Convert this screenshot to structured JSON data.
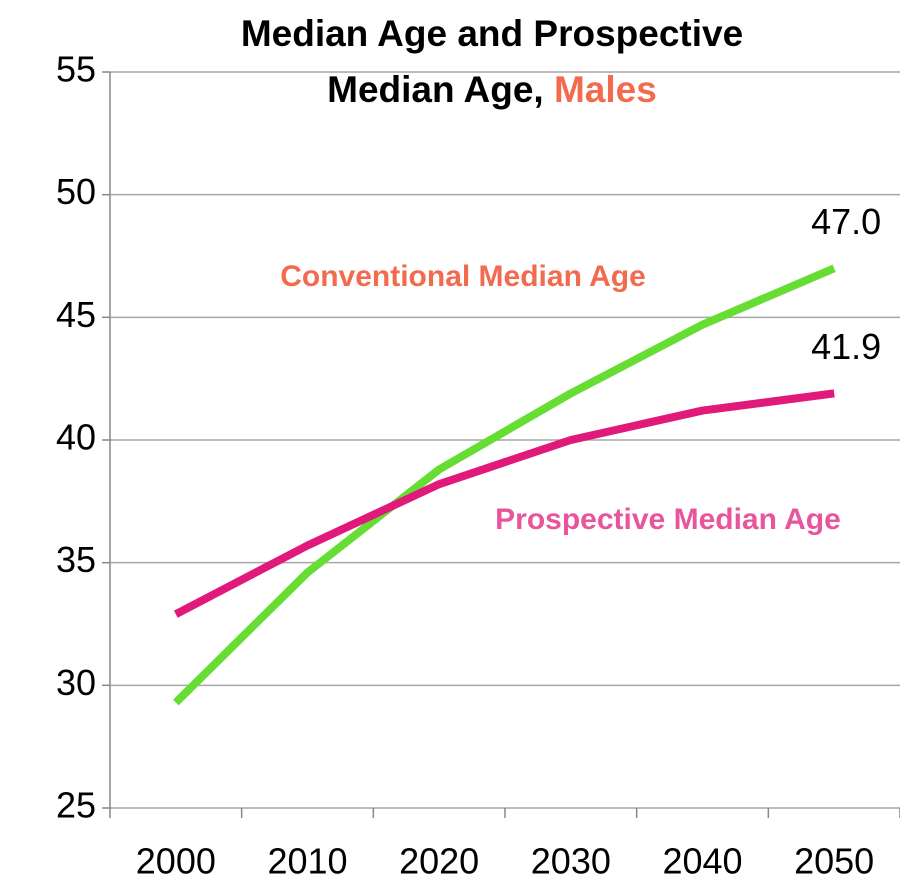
{
  "chart_data": {
    "type": "line",
    "title": [
      "Median Age and Prospective",
      "Median Age,",
      "Males"
    ],
    "title_highlight_color": "#f26b4f",
    "categories": [
      "2000",
      "2010",
      "2020",
      "2030",
      "2040",
      "2050"
    ],
    "series": [
      {
        "name": "Conventional Median Age",
        "color": "#66dd33",
        "label_color": "#f26b4f",
        "values": [
          29.3,
          34.6,
          38.8,
          41.9,
          44.7,
          47.0
        ],
        "value_labels": [
          null,
          null,
          null,
          null,
          null,
          "47.0"
        ]
      },
      {
        "name": "Prospective Median Age",
        "color": "#e0197a",
        "label_color": "#e8559d",
        "values": [
          32.9,
          35.7,
          38.2,
          40.0,
          41.2,
          41.9
        ],
        "value_labels": [
          null,
          null,
          null,
          null,
          null,
          "41.9"
        ]
      }
    ],
    "ylim": [
      25,
      55
    ],
    "yticks": [
      25,
      30,
      35,
      40,
      45,
      50,
      55
    ],
    "grid": true
  }
}
